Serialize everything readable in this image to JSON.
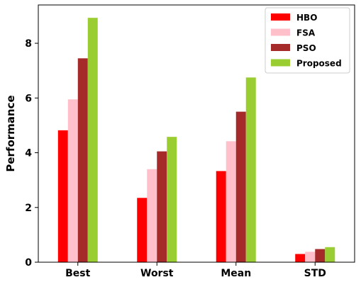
{
  "chart_data": {
    "type": "bar",
    "title": "",
    "xlabel": "",
    "ylabel": "Performance",
    "categories": [
      "Best",
      "Worst",
      "Mean",
      "STD"
    ],
    "ylim": [
      0,
      9.4
    ],
    "yticks": [
      0,
      2,
      4,
      6,
      8
    ],
    "grid": false,
    "legend_position": "top-right",
    "series": [
      {
        "name": "HBO",
        "color": "#ff0000",
        "values": [
          4.82,
          2.35,
          3.33,
          0.3
        ]
      },
      {
        "name": "FSA",
        "color": "#ffc0cb",
        "values": [
          5.95,
          3.4,
          4.42,
          0.38
        ]
      },
      {
        "name": "PSO",
        "color": "#a52a2a",
        "values": [
          7.45,
          4.05,
          5.5,
          0.48
        ]
      },
      {
        "name": "Proposed",
        "color": "#9acd32",
        "values": [
          8.93,
          4.58,
          6.75,
          0.55
        ]
      }
    ]
  }
}
